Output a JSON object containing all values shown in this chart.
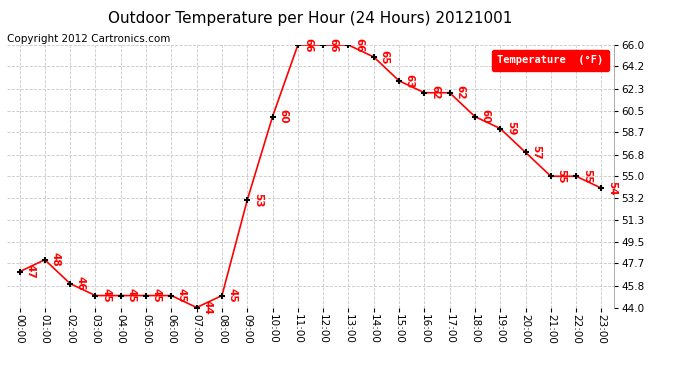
{
  "title": "Outdoor Temperature per Hour (24 Hours) 20121001",
  "copyright": "Copyright 2012 Cartronics.com",
  "hours": [
    0,
    1,
    2,
    3,
    4,
    5,
    6,
    7,
    8,
    9,
    10,
    11,
    12,
    13,
    14,
    15,
    16,
    17,
    18,
    19,
    20,
    21,
    22,
    23
  ],
  "temperatures": [
    47,
    48,
    46,
    45,
    45,
    45,
    45,
    44,
    45,
    53,
    60,
    66,
    66,
    66,
    65,
    63,
    62,
    62,
    60,
    59,
    57,
    55,
    55,
    54
  ],
  "x_labels": [
    "00:00",
    "01:00",
    "02:00",
    "03:00",
    "04:00",
    "05:00",
    "06:00",
    "07:00",
    "08:00",
    "09:00",
    "10:00",
    "11:00",
    "12:00",
    "13:00",
    "14:00",
    "15:00",
    "16:00",
    "17:00",
    "18:00",
    "19:00",
    "20:00",
    "21:00",
    "22:00",
    "23:00"
  ],
  "line_color": "red",
  "marker_color": "black",
  "label_color": "red",
  "bg_color": "white",
  "grid_color": "#c8c8c8",
  "ylim": [
    44.0,
    66.0
  ],
  "yticks": [
    44.0,
    45.8,
    47.7,
    49.5,
    51.3,
    53.2,
    55.0,
    56.8,
    58.7,
    60.5,
    62.3,
    64.2,
    66.0
  ],
  "ytick_labels": [
    "44.0",
    "45.8",
    "47.7",
    "49.5",
    "51.3",
    "53.2",
    "55.0",
    "56.8",
    "58.7",
    "60.5",
    "62.3",
    "64.2",
    "66.0"
  ],
  "legend_label": "Temperature  (°F)",
  "legend_bg": "red",
  "legend_text_color": "white",
  "title_fontsize": 11,
  "copyright_fontsize": 7.5,
  "label_fontsize": 7.5,
  "tick_fontsize": 7.5
}
